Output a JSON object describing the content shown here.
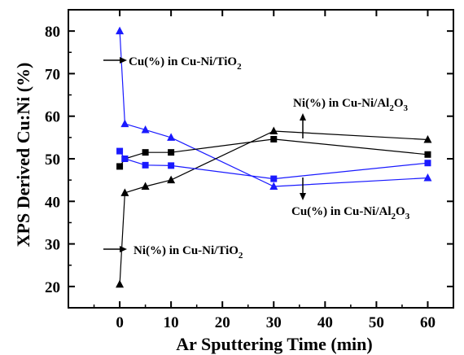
{
  "chart_data": {
    "type": "line",
    "xlabel": "Ar Sputtering Time (min)",
    "ylabel": "XPS Derived Cu:Ni (%)",
    "xlim": [
      -10,
      65
    ],
    "ylim": [
      15,
      85
    ],
    "xticks": [
      0,
      10,
      20,
      30,
      40,
      50,
      60
    ],
    "yticks": [
      20,
      30,
      40,
      50,
      60,
      70,
      80
    ],
    "grid": false,
    "series": [
      {
        "key": "cu_tio2",
        "color": "#1a1aff",
        "marker": "triangle",
        "x": [
          0,
          1,
          5,
          10,
          30,
          60
        ],
        "y": [
          80,
          58.2,
          56.8,
          55,
          43.5,
          45.5
        ]
      },
      {
        "key": "ni_tio2",
        "color": "#000000",
        "marker": "triangle",
        "x": [
          0,
          1,
          5,
          10,
          30,
          60
        ],
        "y": [
          20.5,
          42,
          43.5,
          45,
          56.5,
          54.5
        ]
      },
      {
        "key": "ni_al2o3",
        "color": "#000000",
        "marker": "square",
        "x": [
          0,
          1,
          5,
          10,
          30,
          60
        ],
        "y": [
          48.2,
          50,
          51.5,
          51.5,
          54.6,
          51
        ]
      },
      {
        "key": "cu_al2o3",
        "color": "#1a1aff",
        "marker": "square",
        "x": [
          0,
          1,
          5,
          10,
          30,
          60
        ],
        "y": [
          51.8,
          50,
          48.5,
          48.4,
          45.3,
          49
        ]
      }
    ],
    "annotations": [
      {
        "pre": "Cu(%) in Cu-Ni/TiO",
        "sub": "2",
        "post": ""
      },
      {
        "pre": "Ni(%) in Cu-Ni/TiO",
        "sub": "2",
        "post": ""
      },
      {
        "pre": "Ni(%) in Cu-Ni/Al",
        "sub": "2",
        "post": "O",
        "sub2": "3"
      },
      {
        "pre": "Cu(%) in Cu-Ni/Al",
        "sub": "2",
        "post": "O",
        "sub2": "3"
      }
    ]
  }
}
